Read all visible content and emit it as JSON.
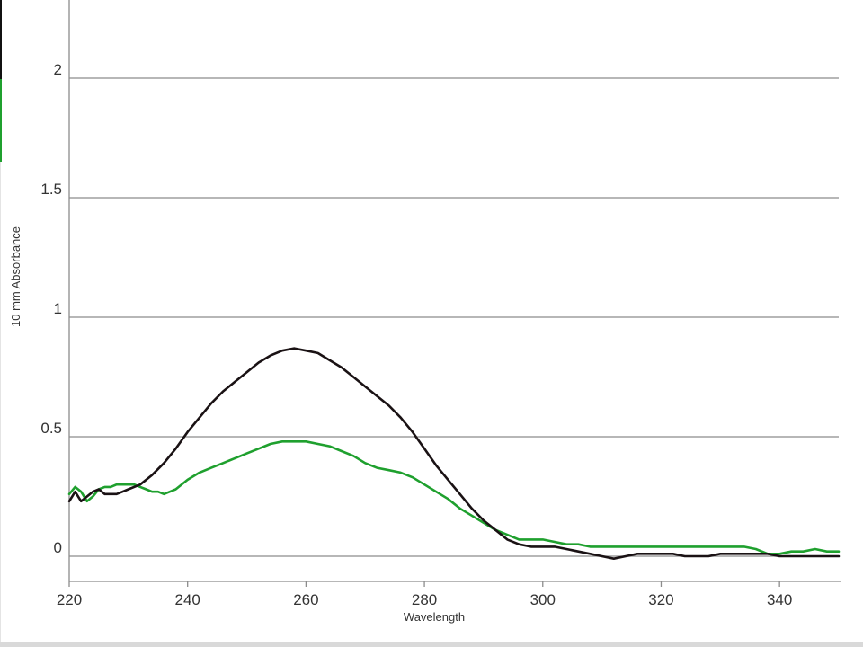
{
  "chart_data": {
    "type": "line",
    "title": "",
    "xlabel": "Wavelength",
    "ylabel": "10 mm Absorbance",
    "xlim": [
      220,
      350
    ],
    "ylim": [
      -0.1,
      2.3
    ],
    "x_ticks": [
      220,
      240,
      260,
      280,
      300,
      320,
      340
    ],
    "x_tick_labels": [
      "220",
      "240",
      "260",
      "280",
      "300",
      "320",
      "340"
    ],
    "y_ticks": [
      0,
      0.5,
      1,
      1.5,
      2
    ],
    "y_tick_labels": [
      "0",
      "0.5",
      "1",
      "1.5",
      "2"
    ],
    "grid": "horizontal",
    "legend": "left-edge color markers",
    "series": [
      {
        "color": "#1a1214",
        "x": [
          220,
          221,
          222,
          223,
          224,
          225,
          226,
          227,
          228,
          229,
          230,
          232,
          234,
          236,
          238,
          240,
          242,
          244,
          246,
          248,
          250,
          252,
          254,
          256,
          258,
          260,
          262,
          264,
          266,
          268,
          270,
          272,
          274,
          276,
          278,
          280,
          282,
          284,
          286,
          288,
          290,
          292,
          294,
          296,
          298,
          300,
          302,
          304,
          306,
          308,
          310,
          312,
          314,
          316,
          318,
          320,
          322,
          324,
          326,
          328,
          330,
          332,
          334,
          336,
          338,
          340,
          342,
          344,
          346,
          348,
          350
        ],
        "y": [
          0.23,
          0.27,
          0.23,
          0.25,
          0.27,
          0.28,
          0.26,
          0.26,
          0.26,
          0.27,
          0.28,
          0.3,
          0.34,
          0.39,
          0.45,
          0.52,
          0.58,
          0.64,
          0.69,
          0.73,
          0.77,
          0.81,
          0.84,
          0.86,
          0.87,
          0.86,
          0.85,
          0.82,
          0.79,
          0.75,
          0.71,
          0.67,
          0.63,
          0.58,
          0.52,
          0.45,
          0.38,
          0.32,
          0.26,
          0.2,
          0.15,
          0.11,
          0.07,
          0.05,
          0.04,
          0.04,
          0.04,
          0.03,
          0.02,
          0.01,
          0.0,
          -0.01,
          0.0,
          0.01,
          0.01,
          0.01,
          0.01,
          0.0,
          0.0,
          0.0,
          0.01,
          0.01,
          0.01,
          0.01,
          0.01,
          0.0,
          0.0,
          0.0,
          0.0,
          0.0,
          0.0
        ]
      },
      {
        "color": "#1fa02e",
        "x": [
          220,
          221,
          222,
          223,
          224,
          225,
          226,
          227,
          228,
          229,
          230,
          231,
          232,
          233,
          234,
          235,
          236,
          237,
          238,
          240,
          242,
          244,
          246,
          248,
          250,
          252,
          254,
          256,
          258,
          260,
          262,
          264,
          266,
          268,
          270,
          272,
          274,
          276,
          278,
          280,
          282,
          284,
          286,
          288,
          290,
          292,
          294,
          296,
          298,
          300,
          302,
          304,
          306,
          308,
          310,
          312,
          314,
          316,
          318,
          320,
          322,
          324,
          326,
          328,
          330,
          332,
          334,
          336,
          338,
          340,
          342,
          344,
          346,
          348,
          350
        ],
        "y": [
          0.26,
          0.29,
          0.27,
          0.23,
          0.25,
          0.28,
          0.29,
          0.29,
          0.3,
          0.3,
          0.3,
          0.3,
          0.29,
          0.28,
          0.27,
          0.27,
          0.26,
          0.27,
          0.28,
          0.32,
          0.35,
          0.37,
          0.39,
          0.41,
          0.43,
          0.45,
          0.47,
          0.48,
          0.48,
          0.48,
          0.47,
          0.46,
          0.44,
          0.42,
          0.39,
          0.37,
          0.36,
          0.35,
          0.33,
          0.3,
          0.27,
          0.24,
          0.2,
          0.17,
          0.14,
          0.11,
          0.09,
          0.07,
          0.07,
          0.07,
          0.06,
          0.05,
          0.05,
          0.04,
          0.04,
          0.04,
          0.04,
          0.04,
          0.04,
          0.04,
          0.04,
          0.04,
          0.04,
          0.04,
          0.04,
          0.04,
          0.04,
          0.03,
          0.01,
          0.01,
          0.02,
          0.02,
          0.03,
          0.02,
          0.02
        ]
      }
    ]
  }
}
